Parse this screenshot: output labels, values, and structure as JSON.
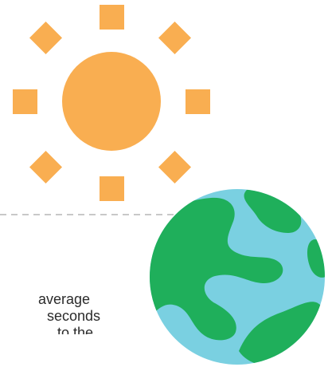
{
  "illustration": {
    "sun_icon": "sun-icon",
    "earth_icon": "earth-icon",
    "colors": {
      "sun": "#F9AE51",
      "earth_land": "#1FAF5B",
      "earth_water": "#7AD0E1",
      "outline": "#2F8F52",
      "dashed_line": "#C8C8C8"
    }
  },
  "caption": {
    "line_1": "average",
    "line_2": "seconds",
    "line_3": "to the"
  }
}
